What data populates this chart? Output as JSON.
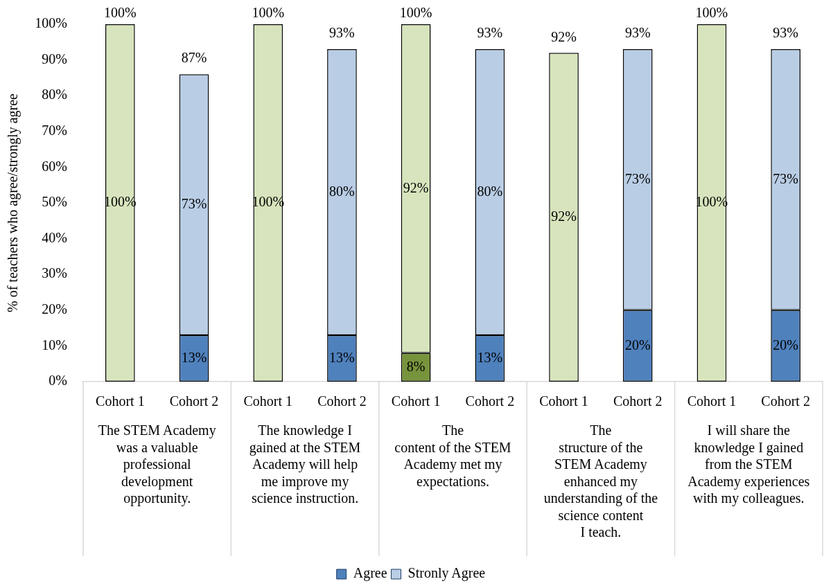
{
  "chart_data": {
    "type": "bar",
    "stacked": true,
    "ylabel": "% of teachers who agree/strongly agree",
    "categories": [
      "Cohort 1",
      "Cohort 2",
      "Cohort 1",
      "Cohort 2",
      "Cohort 1",
      "Cohort 2",
      "Cohort 1",
      "Cohort 2",
      "Cohort 1",
      "Cohort 2"
    ],
    "series": [
      {
        "name": "Agree",
        "color": "#4f81bd",
        "colors": [
          "#77933c",
          "#4f81bd",
          "#77933c",
          "#4f81bd",
          "#77933c",
          "#4f81bd",
          "#77933c",
          "#4f81bd",
          "#77933c",
          "#4f81bd"
        ],
        "values": [
          null,
          13,
          null,
          13,
          8,
          13,
          null,
          20,
          null,
          20
        ],
        "value_labels": [
          null,
          "13%",
          null,
          "13%",
          "8%",
          "13%",
          null,
          "20%",
          null,
          "20%"
        ]
      },
      {
        "name": "Stronly Agree",
        "color": "#b9cde5",
        "colors": [
          "#d7e4bd",
          "#b9cde5",
          "#d7e4bd",
          "#b9cde5",
          "#d7e4bd",
          "#b9cde5",
          "#d7e4bd",
          "#b9cde5",
          "#d7e4bd",
          "#b9cde5"
        ],
        "values": [
          100,
          73,
          100,
          80,
          92,
          80,
          92,
          73,
          100,
          73
        ],
        "value_labels": [
          "100%",
          "73%",
          "100%",
          "80%",
          "92%",
          "80%",
          "92%",
          "73%",
          "100%",
          "73%"
        ]
      }
    ],
    "totals": [
      "100%",
      "87%",
      "100%",
      "93%",
      "100%",
      "93%",
      "92%",
      "93%",
      "100%",
      "93%"
    ],
    "ylim": [
      0,
      100
    ],
    "yticks": [
      {
        "value": 0,
        "label": "0%"
      },
      {
        "value": 10,
        "label": "10%"
      },
      {
        "value": 20,
        "label": "20%"
      },
      {
        "value": 30,
        "label": "30%"
      },
      {
        "value": 40,
        "label": "40%"
      },
      {
        "value": 50,
        "label": "50%"
      },
      {
        "value": 60,
        "label": "60%"
      },
      {
        "value": 70,
        "label": "70%"
      },
      {
        "value": 80,
        "label": "80%"
      },
      {
        "value": 90,
        "label": "90%"
      },
      {
        "value": 100,
        "label": "100%"
      }
    ],
    "grid": false,
    "legend": "bottom",
    "annotations": [
      "The STEM Academy\nwas a valuable\nprofessional\ndevelopment\nopportunity.",
      "The knowledge I\ngained at the STEM\nAcademy will help\nme improve my\nscience instruction.",
      "The\ncontent of the STEM\nAcademy met my\nexpectations.",
      "The\nstructure of the\nSTEM Academy\nenhanced my\nunderstanding of the\nscience content\nI teach.",
      "I will share the\nknowledge I gained\nfrom the STEM\nAcademy experiences\nwith my colleagues."
    ]
  }
}
